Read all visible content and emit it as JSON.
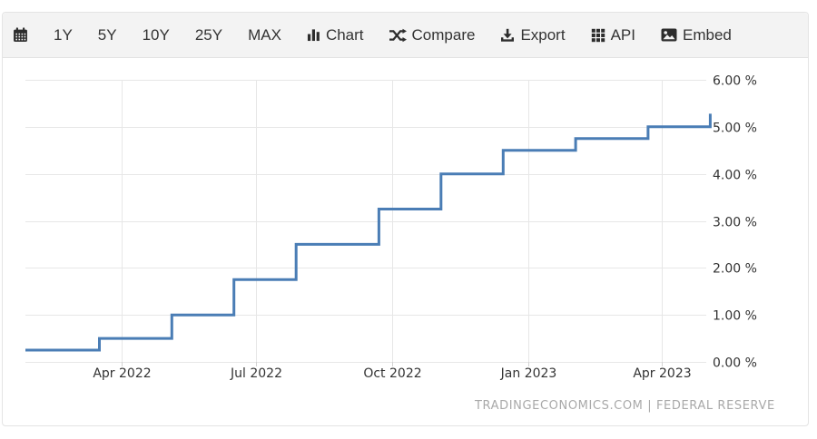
{
  "toolbar": {
    "items": [
      {
        "id": "calendar",
        "icon": "calendar-icon",
        "label": ""
      },
      {
        "id": "range-1y",
        "icon": "",
        "label": "1Y"
      },
      {
        "id": "range-5y",
        "icon": "",
        "label": "5Y"
      },
      {
        "id": "range-10y",
        "icon": "",
        "label": "10Y"
      },
      {
        "id": "range-25y",
        "icon": "",
        "label": "25Y"
      },
      {
        "id": "range-max",
        "icon": "",
        "label": "MAX"
      },
      {
        "id": "chart",
        "icon": "bar-chart-icon",
        "label": "Chart"
      },
      {
        "id": "compare",
        "icon": "shuffle-icon",
        "label": "Compare"
      },
      {
        "id": "export",
        "icon": "download-icon",
        "label": "Export"
      },
      {
        "id": "api",
        "icon": "grid-icon",
        "label": "API"
      },
      {
        "id": "embed",
        "icon": "image-icon",
        "label": "Embed"
      }
    ]
  },
  "chart_data": {
    "type": "line",
    "step": true,
    "title": "",
    "xlabel": "",
    "ylabel": "",
    "grid": true,
    "legend_position": "none",
    "line_color": "#4a7db5",
    "ylim": [
      0,
      6
    ],
    "x_range": [
      "2022-01-26",
      "2023-05-05"
    ],
    "series": [
      {
        "points": [
          {
            "date": "2022-01-26",
            "value": 0.25
          },
          {
            "date": "2022-03-17",
            "value": 0.5
          },
          {
            "date": "2022-05-05",
            "value": 1.0
          },
          {
            "date": "2022-06-16",
            "value": 1.75
          },
          {
            "date": "2022-07-28",
            "value": 2.5
          },
          {
            "date": "2022-09-22",
            "value": 3.25
          },
          {
            "date": "2022-11-03",
            "value": 4.0
          },
          {
            "date": "2022-12-15",
            "value": 4.5
          },
          {
            "date": "2023-02-02",
            "value": 4.75
          },
          {
            "date": "2023-03-23",
            "value": 5.0
          },
          {
            "date": "2023-05-04",
            "value": 5.25
          }
        ]
      }
    ],
    "x_ticks": [
      {
        "date": "2022-04-01",
        "label": "Apr 2022"
      },
      {
        "date": "2022-07-01",
        "label": "Jul 2022"
      },
      {
        "date": "2022-10-01",
        "label": "Oct 2022"
      },
      {
        "date": "2023-01-01",
        "label": "Jan 2023"
      },
      {
        "date": "2023-04-01",
        "label": "Apr 2023"
      }
    ],
    "y_ticks": [
      {
        "value": 0,
        "label": "0.00 %"
      },
      {
        "value": 1,
        "label": "1.00 %"
      },
      {
        "value": 2,
        "label": "2.00 %"
      },
      {
        "value": 3,
        "label": "3.00 %"
      },
      {
        "value": 4,
        "label": "4.00 %"
      },
      {
        "value": 5,
        "label": "5.00 %"
      },
      {
        "value": 6,
        "label": "6.00 %"
      }
    ],
    "watermark": "TRADINGECONOMICS.COM | FEDERAL RESERVE"
  }
}
